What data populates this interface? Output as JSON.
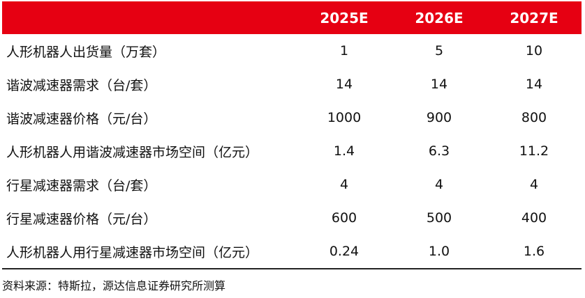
{
  "table": {
    "columns": [
      "",
      "2025E",
      "2026E",
      "2027E"
    ],
    "rows": [
      {
        "label": "人形机器人出货量（万套）",
        "values": [
          "1",
          "5",
          "10"
        ]
      },
      {
        "label": "谐波减速器需求（台/套）",
        "values": [
          "14",
          "14",
          "14"
        ]
      },
      {
        "label": "谐波减速器价格（元/台）",
        "values": [
          "1000",
          "900",
          "800"
        ]
      },
      {
        "label": "人形机器人用谐波减速器市场空间（亿元）",
        "values": [
          "1.4",
          "6.3",
          "11.2"
        ]
      },
      {
        "label": "行星减速器需求（台/套）",
        "values": [
          "4",
          "4",
          "4"
        ]
      },
      {
        "label": "行星减速器价格（元/台）",
        "values": [
          "600",
          "500",
          "400"
        ]
      },
      {
        "label": "人形机器人用行星减速器市场空间（亿元）",
        "values": [
          "0.24",
          "1.0",
          "1.6"
        ]
      }
    ]
  },
  "source_note": "资料来源：特斯拉，源达信息证券研究所测算",
  "colors": {
    "header_background": "#e60012",
    "header_text": "#ffffff"
  }
}
